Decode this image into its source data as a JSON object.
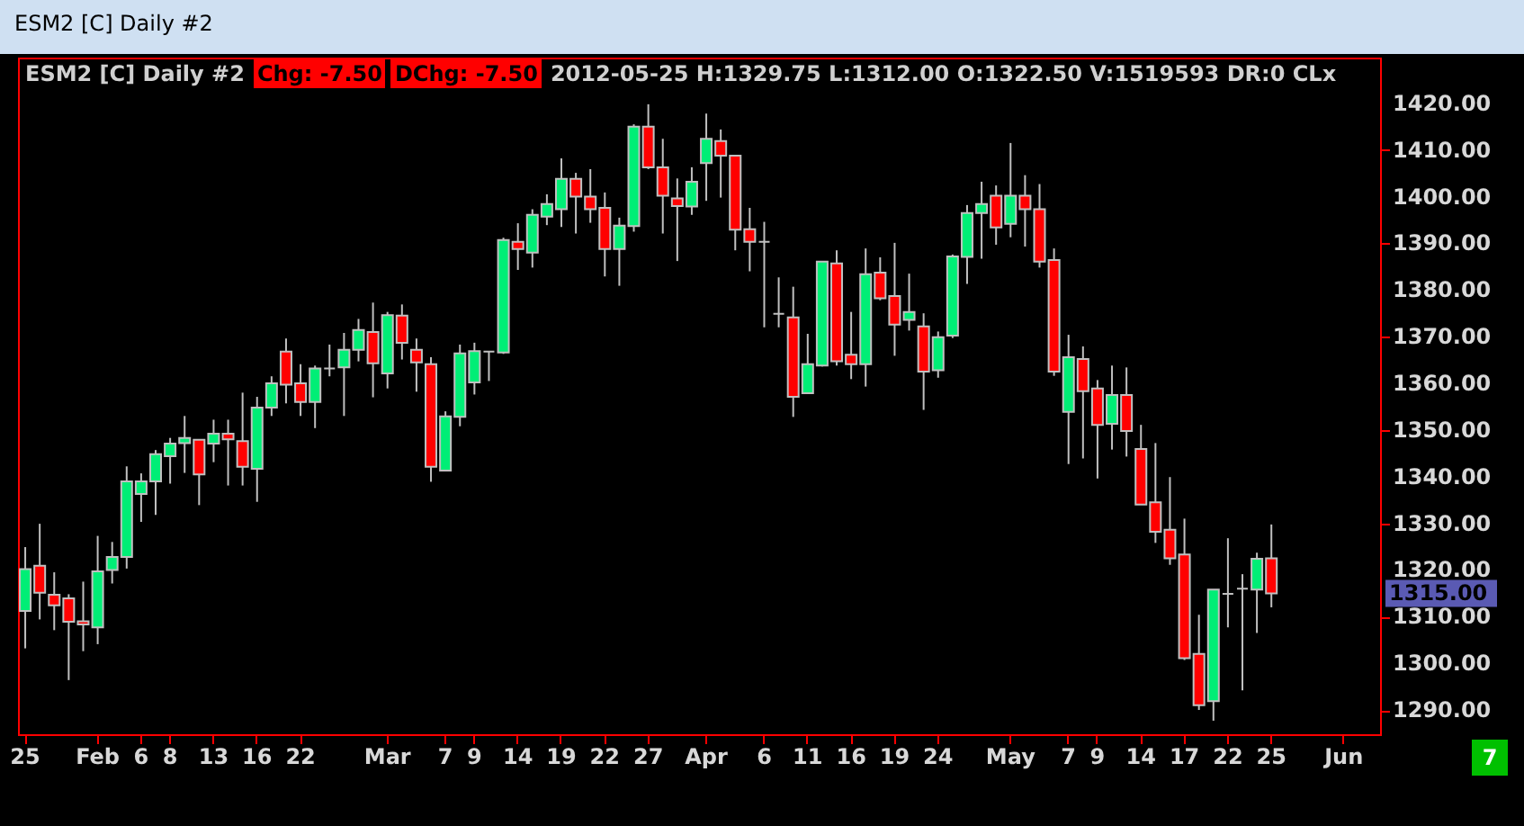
{
  "chart_data": {
    "type": "candlestick",
    "title": "ESM2 [C]  Daily  #2",
    "annotations": [
      "ESM2 [C]  Daily  #2",
      "Chg: -7.50",
      "DChg: -7.50",
      "2012-05-25 H:1329.75 L:1312.00 O:1322.50 V:1519593 DR:0 CLx",
      "7",
      "1315.00"
    ],
    "categories": [
      "25",
      null,
      null,
      null,
      null,
      "Feb",
      null,
      null,
      "6",
      null,
      "8",
      null,
      null,
      "13",
      null,
      null,
      "16",
      null,
      null,
      "22",
      null,
      null,
      null,
      null,
      null,
      "Mar",
      null,
      null,
      null,
      "7",
      null,
      "9",
      null,
      null,
      "14",
      null,
      null,
      "19",
      null,
      null,
      "22",
      null,
      null,
      "27",
      null,
      null,
      null,
      "Apr",
      null,
      null,
      null,
      "6",
      null,
      null,
      "11",
      null,
      null,
      "16",
      null,
      null,
      "19",
      null,
      null,
      "24",
      null,
      null,
      null,
      null,
      "May",
      null,
      null,
      null,
      "7",
      null,
      "9",
      null,
      null,
      "14",
      null,
      null,
      "17",
      null,
      null,
      "22",
      null,
      null,
      "25",
      null,
      null,
      null,
      null,
      "Jun",
      null,
      null
    ],
    "ohlc": [
      [
        1311.2,
        1324.9,
        1303.2,
        1320.2
      ],
      [
        1320.9,
        1329.9,
        1309.4,
        1315.1
      ],
      [
        1314.7,
        1319.5,
        1307.1,
        1312.4
      ],
      [
        1313.9,
        1314.8,
        1296.4,
        1308.9
      ],
      [
        1309.0,
        1317.5,
        1302.6,
        1308.3
      ],
      [
        1307.7,
        1327.3,
        1304.1,
        1319.7
      ],
      [
        1320.0,
        1326.0,
        1317.1,
        1322.8
      ],
      [
        1322.8,
        1342.2,
        1320.3,
        1339.0
      ],
      [
        1336.3,
        1340.7,
        1330.3,
        1339.0
      ],
      [
        1339.0,
        1345.7,
        1331.8,
        1344.8
      ],
      [
        1344.4,
        1348.3,
        1338.5,
        1347.1
      ],
      [
        1347.2,
        1353.0,
        1340.8,
        1348.3
      ],
      [
        1347.9,
        1347.9,
        1333.9,
        1340.5
      ],
      [
        1347.1,
        1352.2,
        1343.1,
        1349.2
      ],
      [
        1349.2,
        1352.2,
        1338.1,
        1348.0
      ],
      [
        1347.6,
        1358.0,
        1338.1,
        1342.1
      ],
      [
        1341.7,
        1357.1,
        1334.6,
        1354.8
      ],
      [
        1354.8,
        1361.5,
        1353.0,
        1360.0
      ],
      [
        1366.8,
        1369.6,
        1355.7,
        1359.7
      ],
      [
        1360.0,
        1364.1,
        1353.0,
        1356.0
      ],
      [
        1356.0,
        1363.8,
        1350.4,
        1363.2
      ],
      [
        1363.2,
        1368.3,
        1361.5,
        1363.2
      ],
      [
        1363.4,
        1370.8,
        1353.0,
        1367.2
      ],
      [
        1367.2,
        1373.8,
        1364.7,
        1371.4
      ],
      [
        1371.0,
        1377.3,
        1357.0,
        1364.3
      ],
      [
        1362.1,
        1375.3,
        1358.9,
        1374.6
      ],
      [
        1374.5,
        1376.9,
        1365.1,
        1368.7
      ],
      [
        1367.2,
        1369.6,
        1358.2,
        1364.5
      ],
      [
        1364.1,
        1365.6,
        1338.9,
        1342.1
      ],
      [
        1341.3,
        1354.0,
        1341.3,
        1352.9
      ],
      [
        1352.8,
        1368.3,
        1350.8,
        1366.4
      ],
      [
        1360.2,
        1368.7,
        1357.6,
        1366.9
      ],
      [
        1366.8,
        1366.8,
        1360.5,
        1366.8
      ],
      [
        1366.6,
        1391.2,
        1366.3,
        1390.7
      ],
      [
        1390.3,
        1394.3,
        1384.3,
        1388.8
      ],
      [
        1388.0,
        1397.3,
        1384.8,
        1396.1
      ],
      [
        1395.7,
        1400.5,
        1393.9,
        1398.4
      ],
      [
        1397.3,
        1408.2,
        1393.5,
        1403.8
      ],
      [
        1403.8,
        1405.1,
        1392.1,
        1400.0
      ],
      [
        1400.0,
        1405.9,
        1394.4,
        1397.3
      ],
      [
        1397.6,
        1400.9,
        1382.9,
        1388.8
      ],
      [
        1388.8,
        1395.5,
        1380.9,
        1393.8
      ],
      [
        1393.7,
        1415.5,
        1392.5,
        1415.0
      ],
      [
        1415.0,
        1419.8,
        1405.9,
        1406.3
      ],
      [
        1406.3,
        1412.4,
        1392.1,
        1400.2
      ],
      [
        1399.6,
        1403.9,
        1386.2,
        1398.0
      ],
      [
        1397.9,
        1406.3,
        1396.1,
        1403.2
      ],
      [
        1407.2,
        1417.8,
        1399.1,
        1412.4
      ],
      [
        1411.9,
        1414.4,
        1399.8,
        1408.8
      ],
      [
        1408.8,
        1408.8,
        1388.5,
        1392.9
      ],
      [
        1393.0,
        1397.6,
        1384.0,
        1390.3
      ],
      [
        1390.3,
        1394.6,
        1372.0,
        1390.3
      ],
      [
        1374.9,
        1382.7,
        1372.0,
        1374.9
      ],
      [
        1374.1,
        1380.7,
        1352.8,
        1357.1
      ],
      [
        1357.9,
        1370.6,
        1357.9,
        1364.1
      ],
      [
        1363.8,
        1386.1,
        1363.6,
        1386.1
      ],
      [
        1385.7,
        1388.5,
        1363.8,
        1364.7
      ],
      [
        1366.1,
        1375.3,
        1360.9,
        1364.1
      ],
      [
        1364.1,
        1388.9,
        1359.3,
        1383.4
      ],
      [
        1383.7,
        1387.0,
        1377.8,
        1378.2
      ],
      [
        1378.7,
        1390.1,
        1365.9,
        1372.6
      ],
      [
        1373.6,
        1383.5,
        1371.3,
        1375.3
      ],
      [
        1372.2,
        1375.0,
        1354.3,
        1362.5
      ],
      [
        1362.8,
        1371.1,
        1361.2,
        1369.9
      ],
      [
        1370.2,
        1387.6,
        1369.7,
        1387.2
      ],
      [
        1387.1,
        1398.2,
        1381.3,
        1396.5
      ],
      [
        1396.5,
        1403.2,
        1386.7,
        1398.4
      ],
      [
        1400.2,
        1402.4,
        1389.7,
        1393.4
      ],
      [
        1394.2,
        1411.5,
        1391.3,
        1400.2
      ],
      [
        1400.2,
        1404.6,
        1389.3,
        1397.3
      ],
      [
        1397.3,
        1402.7,
        1384.8,
        1386.1
      ],
      [
        1386.4,
        1388.9,
        1361.6,
        1362.5
      ],
      [
        1353.9,
        1370.4,
        1342.7,
        1365.6
      ],
      [
        1365.2,
        1367.9,
        1343.9,
        1358.3
      ],
      [
        1358.9,
        1360.7,
        1339.6,
        1351.1
      ],
      [
        1351.3,
        1363.8,
        1345.8,
        1357.5
      ],
      [
        1357.5,
        1363.4,
        1344.3,
        1349.8
      ],
      [
        1345.9,
        1351.1,
        1334.0,
        1334.0
      ],
      [
        1334.5,
        1347.2,
        1325.8,
        1328.2
      ],
      [
        1328.6,
        1339.9,
        1321.1,
        1322.5
      ],
      [
        1323.3,
        1331.0,
        1300.7,
        1301.1
      ],
      [
        1302.0,
        1310.4,
        1290.0,
        1291.0
      ],
      [
        1291.9,
        1315.8,
        1287.7,
        1315.8
      ],
      [
        1314.9,
        1326.8,
        1307.7,
        1314.9
      ],
      [
        1316.0,
        1319.1,
        1294.2,
        1316.0
      ],
      [
        1315.8,
        1323.7,
        1306.5,
        1322.4
      ],
      [
        1322.5,
        1329.75,
        1312.0,
        1315.0
      ],
      null,
      null,
      null,
      null,
      null,
      null,
      null
    ],
    "colors": [
      "#00ee76",
      "#ff0000",
      "#ff0000",
      "#ff0000",
      "#ff0000",
      "#00ee76",
      "#00ee76",
      "#00ee76",
      "#00ee76",
      "#00ee76",
      "#00ee76",
      "#00ee76",
      "#ff0000",
      "#00ee76",
      "#ff0000",
      "#ff0000",
      "#00ee76",
      "#00ee76",
      "#ff0000",
      "#ff0000",
      "#00ee76",
      "#c0c0c0",
      "#00ee76",
      "#00ee76",
      "#ff0000",
      "#00ee76",
      "#ff0000",
      "#ff0000",
      "#ff0000",
      "#00ee76",
      "#00ee76",
      "#00ee76",
      "#c0c0c0",
      "#00ee76",
      "#ff0000",
      "#00ee76",
      "#00ee76",
      "#00ee76",
      "#ff0000",
      "#ff0000",
      "#ff0000",
      "#00ee76",
      "#00ee76",
      "#ff0000",
      "#ff0000",
      "#ff0000",
      "#00ee76",
      "#00ee76",
      "#ff0000",
      "#ff0000",
      "#ff0000",
      "#c0c0c0",
      "#c0c0c0",
      "#ff0000",
      "#00ee76",
      "#00ee76",
      "#ff0000",
      "#ff0000",
      "#00ee76",
      "#ff0000",
      "#ff0000",
      "#00ee76",
      "#ff0000",
      "#00ee76",
      "#00ee76",
      "#00ee76",
      "#00ee76",
      "#ff0000",
      "#00ee76",
      "#ff0000",
      "#ff0000",
      "#ff0000",
      "#00ee76",
      "#ff0000",
      "#ff0000",
      "#00ee76",
      "#ff0000",
      "#ff0000",
      "#ff0000",
      "#ff0000",
      "#ff0000",
      "#ff0000",
      "#00ee76",
      "#c0c0c0",
      "#c0c0c0",
      "#00ee76",
      "#ff0000",
      null,
      null,
      null,
      null,
      null,
      null,
      null
    ],
    "ylim": [
      1284.8,
      1429.8
    ],
    "yticks": [
      {
        "value": 1290,
        "label": "1290.00"
      },
      {
        "value": 1300,
        "label": "1300.00"
      },
      {
        "value": 1310,
        "label": "1310.00"
      },
      {
        "value": 1320,
        "label": "1320.00"
      },
      {
        "value": 1330,
        "label": "1330.00"
      },
      {
        "value": 1340,
        "label": "1340.00"
      },
      {
        "value": 1350,
        "label": "1350.00"
      },
      {
        "value": 1360,
        "label": "1360.00"
      },
      {
        "value": 1370,
        "label": "1370.00"
      },
      {
        "value": 1380,
        "label": "1380.00"
      },
      {
        "value": 1390,
        "label": "1390.00"
      },
      {
        "value": 1400,
        "label": "1400.00"
      },
      {
        "value": 1410,
        "label": "1410.00"
      },
      {
        "value": 1420,
        "label": "1420.00"
      }
    ]
  }
}
